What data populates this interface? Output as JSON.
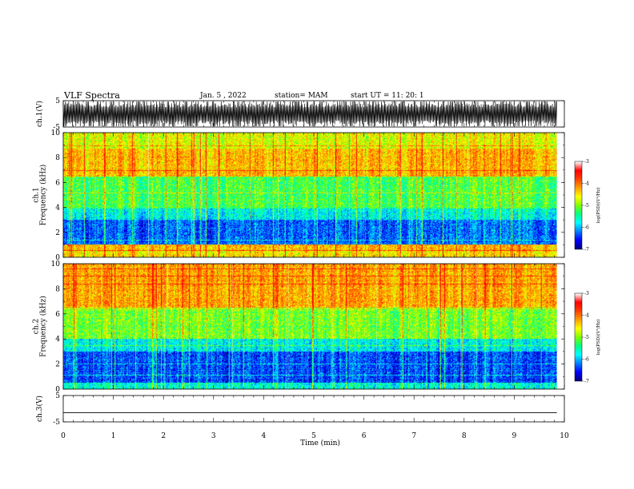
{
  "header": {
    "title": "VLF Spectra",
    "date": "Jan. 5 , 2022",
    "station": "station= MAM",
    "start": "start UT = 11: 20: 1"
  },
  "chart_data": [
    {
      "type": "line",
      "id": "ch1-waveform",
      "ylabel": "ch.1(V)",
      "ylim": [
        -5,
        5
      ],
      "ytick_labels": [
        "5",
        "-5"
      ],
      "xlim": [
        0,
        10
      ],
      "description_values": "dense oscillating waveform, peak-to-peak about -5 to 5 V over 0 to 9.85 min",
      "color": "#000000"
    },
    {
      "type": "heatmap",
      "id": "ch1-spectrogram",
      "ylabel": "ch.1\nFrequency (kHz)",
      "ylabel_lines": [
        "ch.1",
        "Frequency (kHz)"
      ],
      "ylim": [
        0,
        10
      ],
      "ytick_labels": [
        "0",
        "2",
        "4",
        "6",
        "8",
        "10"
      ],
      "xlim": [
        0,
        10
      ],
      "data_xmax": 9.85,
      "colorbar": {
        "label": "log(PSD)(V²/Hz)",
        "range": [
          -7,
          -3
        ],
        "tick_labels": [
          "-3",
          "-4",
          "-5",
          "-6",
          "-7"
        ],
        "colormap": [
          "#000080",
          "#0000ff",
          "#0080ff",
          "#00ffff",
          "#00ff80",
          "#80ff00",
          "#ffff00",
          "#ffa000",
          "#ff4000",
          "#ff0000",
          "#ffffff"
        ]
      },
      "band_levels_by_kHz": [
        {
          "f": [
            0.0,
            0.5
          ],
          "level": -4.2
        },
        {
          "f": [
            0.5,
            1.0
          ],
          "level": -4.0
        },
        {
          "f": [
            1.0,
            3.0
          ],
          "level": -6.2
        },
        {
          "f": [
            3.0,
            4.0
          ],
          "level": -5.6
        },
        {
          "f": [
            4.0,
            6.5
          ],
          "level": -5.0
        },
        {
          "f": [
            6.5,
            8.7
          ],
          "level": -4.0
        },
        {
          "f": [
            8.7,
            10.0
          ],
          "level": -4.4
        }
      ]
    },
    {
      "type": "heatmap",
      "id": "ch2-spectrogram",
      "ylabel": "ch.2\nFrequency (kHz)",
      "ylabel_lines": [
        "ch.2",
        "Frequency (kHz)"
      ],
      "ylim": [
        0,
        10
      ],
      "ytick_labels": [
        "0",
        "2",
        "4",
        "6",
        "8",
        "10"
      ],
      "xlim": [
        0,
        10
      ],
      "data_xmax": 9.85,
      "colorbar": {
        "label": "log(PSD)(V²/Hz)",
        "range": [
          -7,
          -3
        ],
        "tick_labels": [
          "-3",
          "-4",
          "-5",
          "-6",
          "-7"
        ],
        "colormap": [
          "#000080",
          "#0000ff",
          "#0080ff",
          "#00ffff",
          "#00ff80",
          "#80ff00",
          "#ffff00",
          "#ffa000",
          "#ff4000",
          "#ff0000",
          "#ffffff"
        ]
      },
      "band_levels_by_kHz": [
        {
          "f": [
            0.0,
            0.5
          ],
          "level": -5.5
        },
        {
          "f": [
            0.5,
            3.0
          ],
          "level": -6.3
        },
        {
          "f": [
            3.0,
            4.0
          ],
          "level": -5.6
        },
        {
          "f": [
            4.0,
            6.5
          ],
          "level": -4.8
        },
        {
          "f": [
            6.5,
            10.0
          ],
          "level": -3.9
        }
      ]
    },
    {
      "type": "line",
      "id": "ch3-waveform",
      "ylabel": "ch.3(V)",
      "ylim": [
        -5,
        5
      ],
      "ytick_labels": [
        "5",
        "-5"
      ],
      "xlim": [
        0,
        10
      ],
      "flat_value": -1.5,
      "color": "#000000"
    }
  ],
  "xaxis": {
    "label": "Time (min)",
    "tick_labels": [
      "0",
      "1",
      "2",
      "3",
      "4",
      "5",
      "6",
      "7",
      "8",
      "9",
      "10"
    ],
    "range": [
      0,
      10
    ]
  }
}
